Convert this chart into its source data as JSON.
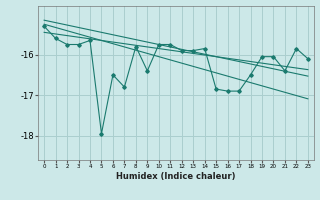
{
  "xlabel": "Humidex (Indice chaleur)",
  "x": [
    0,
    1,
    2,
    3,
    4,
    5,
    6,
    7,
    8,
    9,
    10,
    11,
    12,
    13,
    14,
    15,
    16,
    17,
    18,
    19,
    20,
    21,
    22,
    23
  ],
  "y_main": [
    -15.3,
    -15.6,
    -15.75,
    -15.75,
    -15.65,
    -17.95,
    -16.5,
    -16.8,
    -15.8,
    -16.4,
    -15.75,
    -15.75,
    -15.9,
    -15.9,
    -15.85,
    -16.85,
    -16.9,
    -16.9,
    -16.5,
    -16.05,
    -16.05,
    -16.4,
    -15.85,
    -16.1
  ],
  "y_trend1": [
    -15.25,
    -15.33,
    -15.41,
    -15.49,
    -15.57,
    -15.65,
    -15.73,
    -15.81,
    -15.89,
    -15.97,
    -16.05,
    -16.13,
    -16.21,
    -16.29,
    -16.37,
    -16.45,
    -16.53,
    -16.61,
    -16.69,
    -16.77,
    -16.85,
    -16.93,
    -17.01,
    -17.09
  ],
  "y_trend2": [
    -15.15,
    -15.21,
    -15.27,
    -15.33,
    -15.39,
    -15.45,
    -15.51,
    -15.57,
    -15.63,
    -15.69,
    -15.75,
    -15.81,
    -15.87,
    -15.93,
    -15.99,
    -16.05,
    -16.11,
    -16.17,
    -16.23,
    -16.29,
    -16.35,
    -16.41,
    -16.47,
    -16.53
  ],
  "y_trend3": [
    -15.45,
    -15.49,
    -15.53,
    -15.57,
    -15.61,
    -15.65,
    -15.69,
    -15.73,
    -15.77,
    -15.81,
    -15.85,
    -15.89,
    -15.93,
    -15.97,
    -16.01,
    -16.05,
    -16.09,
    -16.13,
    -16.17,
    -16.21,
    -16.25,
    -16.29,
    -16.33,
    -16.37
  ],
  "ylim": [
    -18.6,
    -14.8
  ],
  "xlim": [
    -0.5,
    23.5
  ],
  "line_color": "#1a7a6e",
  "bg_color": "#cce8e8",
  "grid_color": "#aacece",
  "yticks": [
    -18,
    -17,
    -16
  ],
  "xticks": [
    0,
    1,
    2,
    3,
    4,
    5,
    6,
    7,
    8,
    9,
    10,
    11,
    12,
    13,
    14,
    15,
    16,
    17,
    18,
    19,
    20,
    21,
    22,
    23
  ]
}
